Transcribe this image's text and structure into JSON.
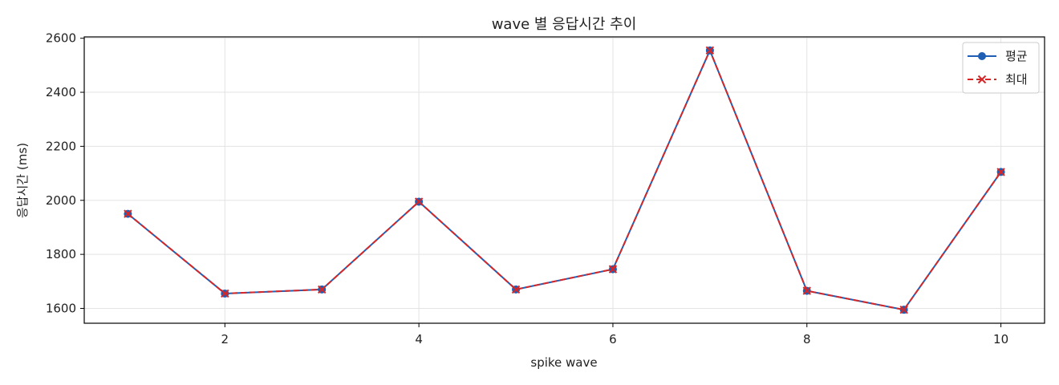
{
  "chart_data": {
    "type": "line",
    "title": "wave 별 응답시간 추이",
    "xlabel": "spike wave",
    "ylabel": "응답시간 (ms)",
    "x": [
      1,
      2,
      3,
      4,
      5,
      6,
      7,
      8,
      9,
      10
    ],
    "xlim": [
      0.55,
      10.45
    ],
    "ylim": [
      1545,
      2605
    ],
    "xticks": [
      2,
      4,
      6,
      8,
      10
    ],
    "yticks": [
      1600,
      1800,
      2000,
      2200,
      2400,
      2600
    ],
    "grid": true,
    "legend_position": "top-right",
    "series": [
      {
        "name": "평균",
        "values": [
          1950,
          1655,
          1670,
          1995,
          1670,
          1745,
          2555,
          1665,
          1595,
          2105
        ],
        "color": "#1f5fb4",
        "line": "solid",
        "marker": "circle"
      },
      {
        "name": "최대",
        "values": [
          1950,
          1655,
          1670,
          1995,
          1670,
          1745,
          2555,
          1665,
          1595,
          2105
        ],
        "color": "#d62728",
        "line": "dashed",
        "marker": "x"
      }
    ]
  }
}
